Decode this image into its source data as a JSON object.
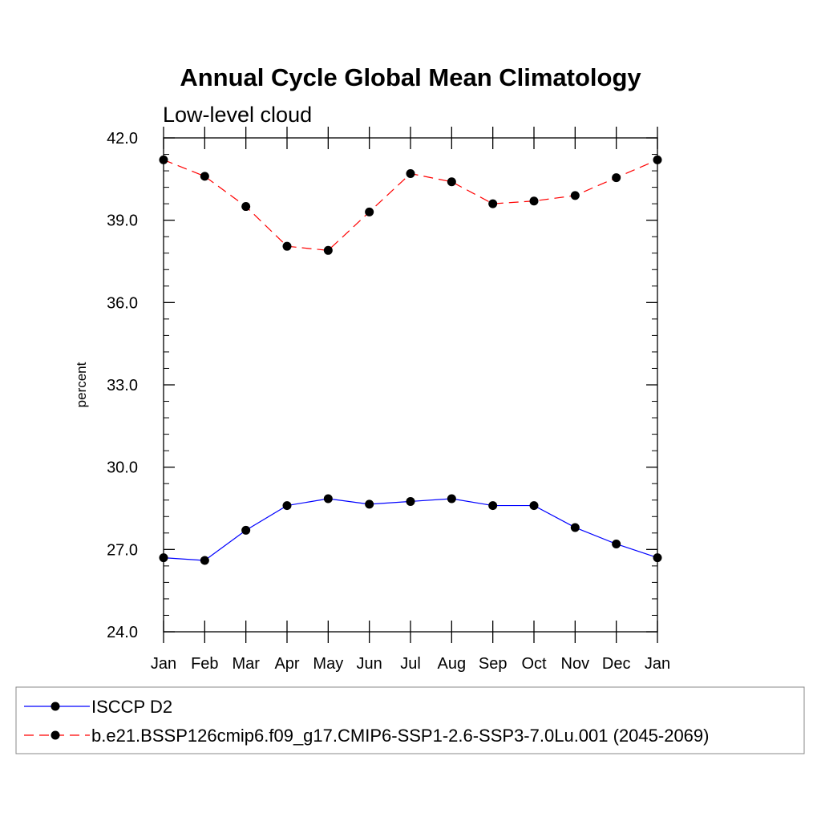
{
  "chart_data": {
    "type": "line",
    "title": "Annual Cycle Global Mean Climatology",
    "subtitle": "Low-level cloud",
    "xlabel": "",
    "ylabel": "percent",
    "categories": [
      "Jan",
      "Feb",
      "Mar",
      "Apr",
      "May",
      "Jun",
      "Jul",
      "Aug",
      "Sep",
      "Oct",
      "Nov",
      "Dec",
      "Jan"
    ],
    "ylim": [
      24.0,
      42.0
    ],
    "yticks": [
      "24.0",
      "27.0",
      "30.0",
      "33.0",
      "36.0",
      "39.0",
      "42.0"
    ],
    "series": [
      {
        "name": "ISCCP D2",
        "color": "#0000ff",
        "dash": "solid",
        "values": [
          26.7,
          26.6,
          27.7,
          28.6,
          28.85,
          28.65,
          28.75,
          28.85,
          28.6,
          28.6,
          27.8,
          27.2,
          26.7
        ]
      },
      {
        "name": "b.e21.BSSP126cmip6.f09_g17.CMIP6-SSP1-2.6-SSP3-7.0Lu.001 (2045-2069)",
        "color": "#ff0000",
        "dash": "dashed",
        "values": [
          41.2,
          40.6,
          39.5,
          38.05,
          37.9,
          39.3,
          40.7,
          40.4,
          39.6,
          39.7,
          39.9,
          40.55,
          41.2
        ]
      }
    ],
    "grid": false,
    "legend": "bottom"
  }
}
